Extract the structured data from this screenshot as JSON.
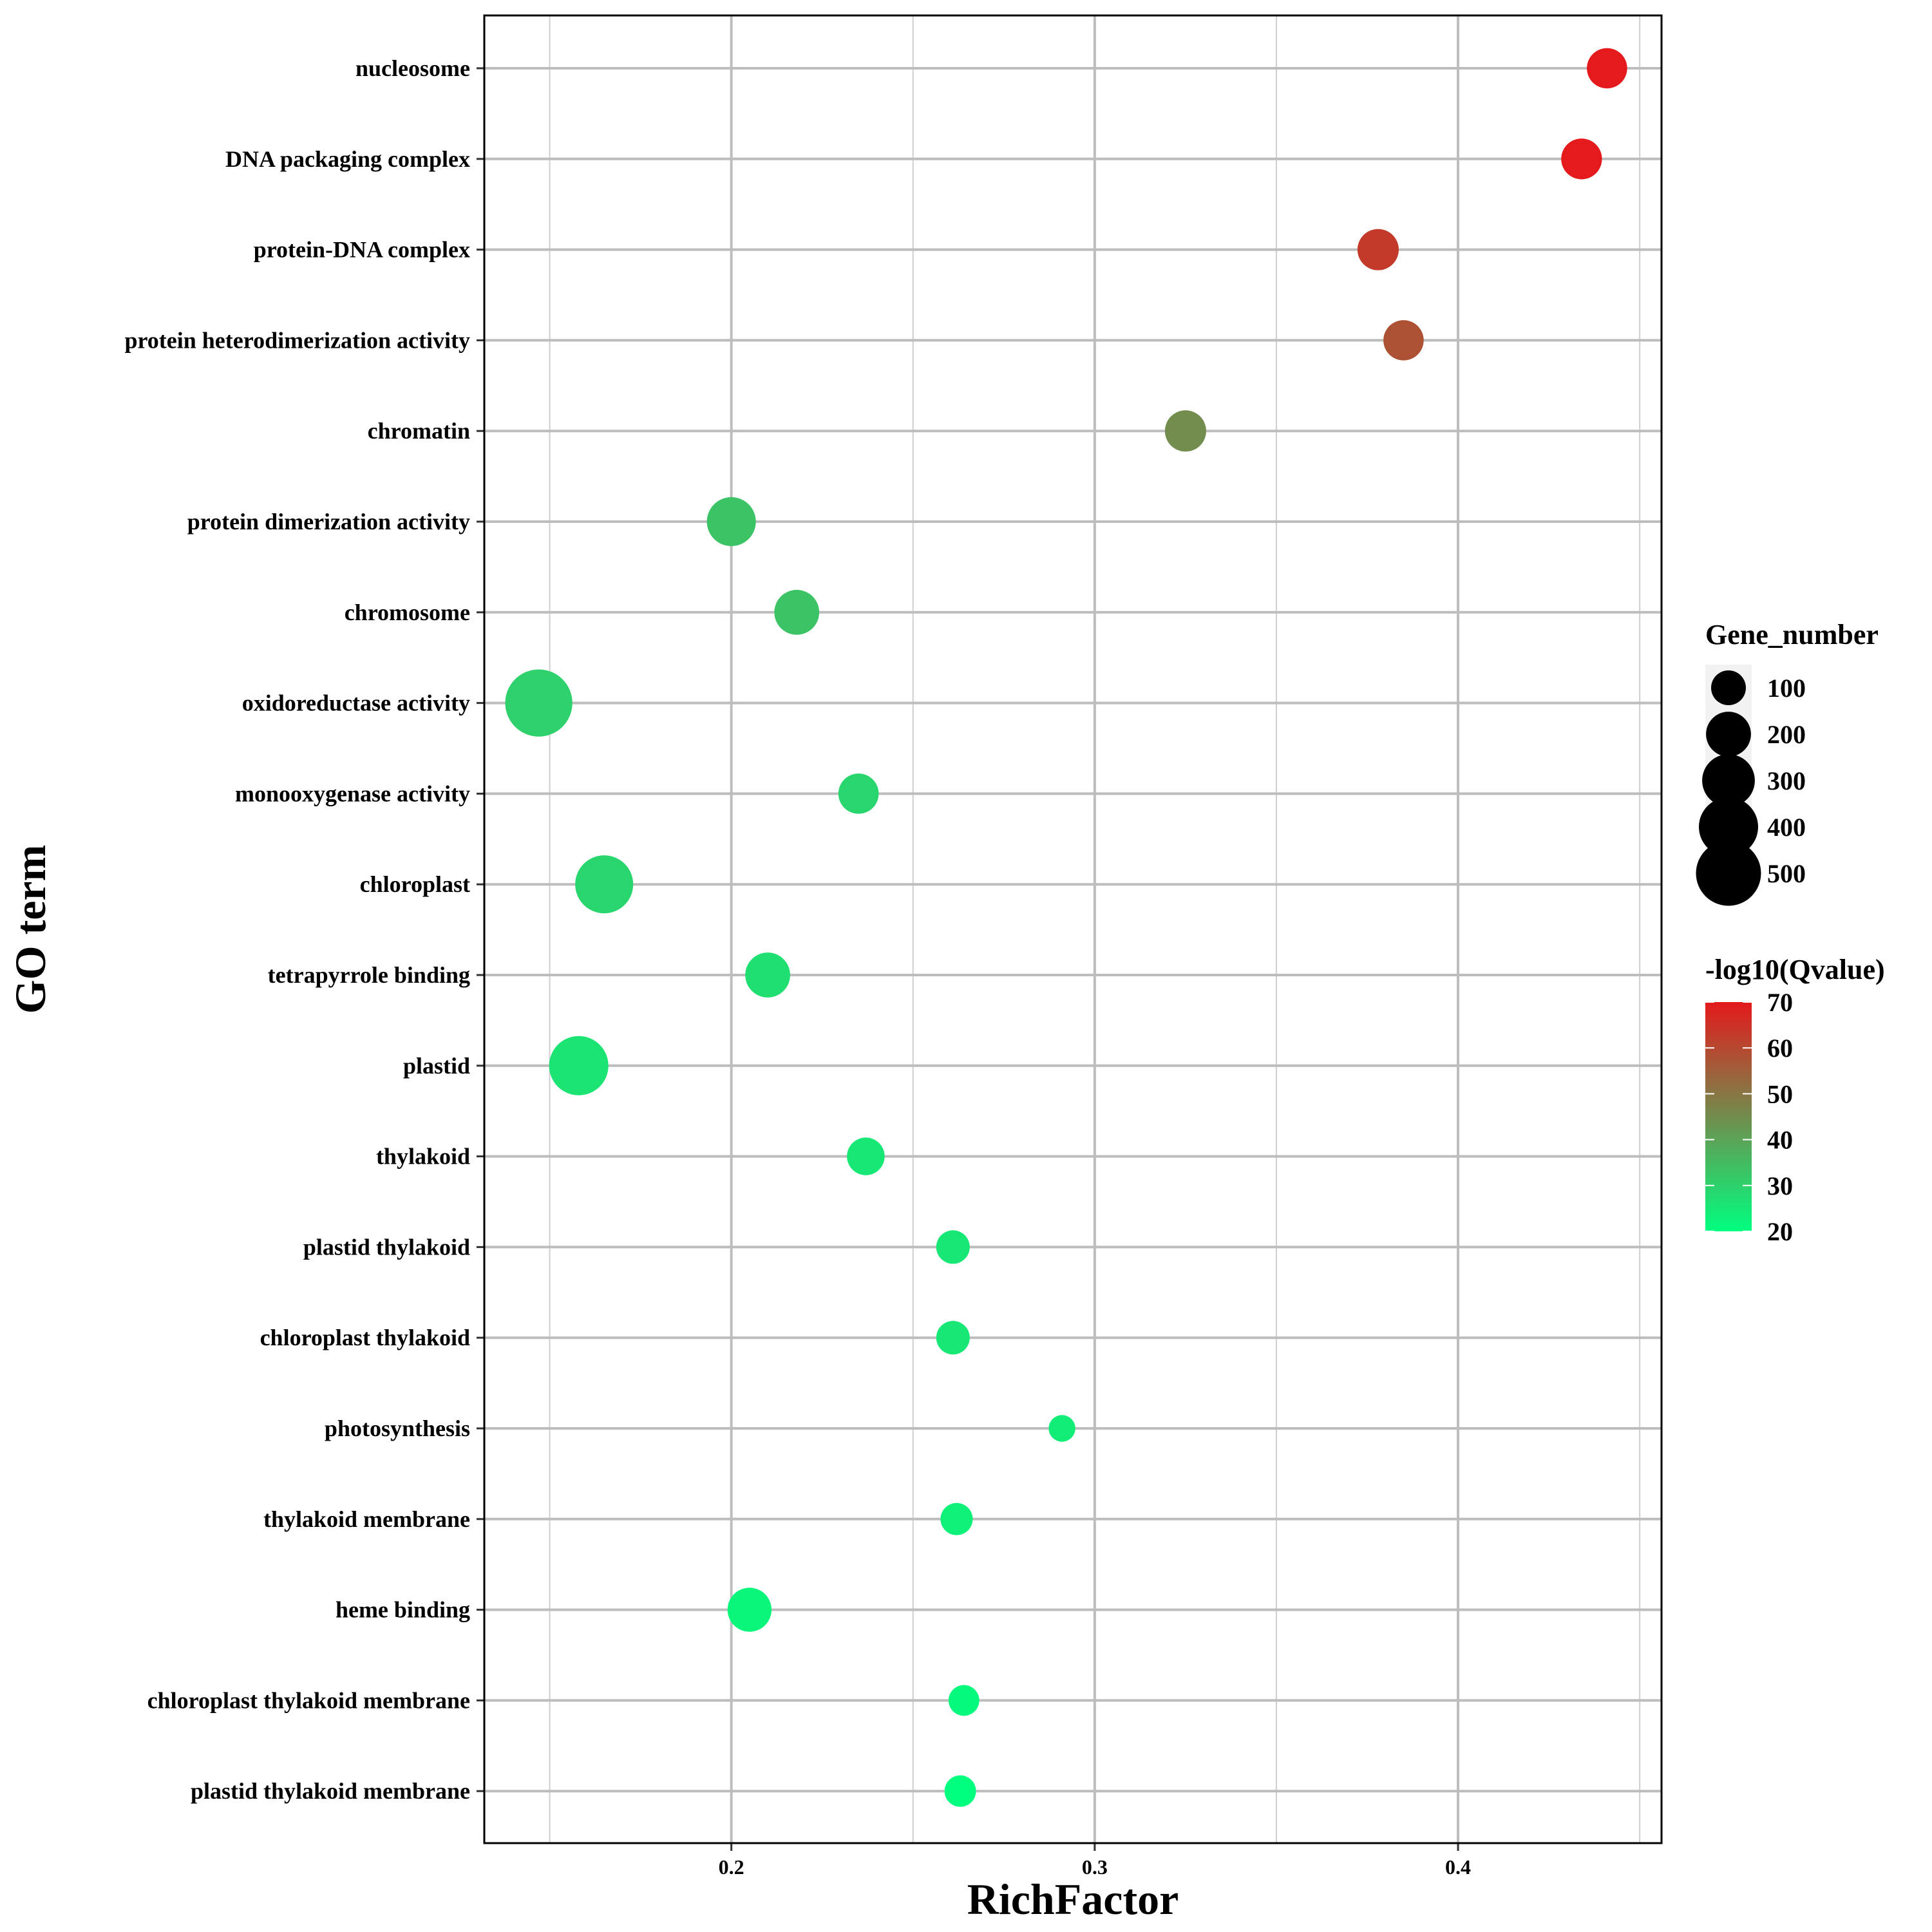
{
  "chart_data": {
    "type": "scatter",
    "xlabel": "RichFactor",
    "ylabel": "GO term",
    "xlim": [
      0.132,
      0.456
    ],
    "xticks": [
      0.2,
      0.3,
      0.4
    ],
    "xtick_labels": [
      "0.2",
      "0.3",
      "0.4"
    ],
    "x_minor_gridlines": [
      0.15,
      0.25,
      0.35,
      0.45
    ],
    "grid": true,
    "size_legend": {
      "title": "Gene_number",
      "values": [
        100,
        200,
        300,
        400,
        500
      ],
      "labels": [
        "100",
        "200",
        "300",
        "400",
        "500"
      ]
    },
    "color_legend": {
      "title": "-log10(Qvalue)",
      "range": [
        20,
        70
      ],
      "ticks": [
        20,
        30,
        40,
        50,
        60,
        70
      ],
      "tick_labels": [
        "20",
        "30",
        "40",
        "50",
        "60",
        "70"
      ],
      "low_color": "#00ff7f",
      "high_color": "#e41a1c"
    },
    "points": [
      {
        "term": "nucleosome",
        "rich_factor": 0.441,
        "gene_number": 150,
        "neg_log10_q": 71
      },
      {
        "term": "DNA packaging complex",
        "rich_factor": 0.434,
        "gene_number": 155,
        "neg_log10_q": 70
      },
      {
        "term": "protein-DNA complex",
        "rich_factor": 0.378,
        "gene_number": 160,
        "neg_log10_q": 63
      },
      {
        "term": "protein heterodimerization activity",
        "rich_factor": 0.385,
        "gene_number": 150,
        "neg_log10_q": 58
      },
      {
        "term": "chromatin",
        "rich_factor": 0.325,
        "gene_number": 160,
        "neg_log10_q": 45
      },
      {
        "term": "protein dimerization activity",
        "rich_factor": 0.2,
        "gene_number": 250,
        "neg_log10_q": 33
      },
      {
        "term": "chromosome",
        "rich_factor": 0.218,
        "gene_number": 200,
        "neg_log10_q": 33
      },
      {
        "term": "oxidoreductase activity",
        "rich_factor": 0.147,
        "gene_number": 540,
        "neg_log10_q": 30
      },
      {
        "term": "monooxygenase activity",
        "rich_factor": 0.235,
        "gene_number": 150,
        "neg_log10_q": 29
      },
      {
        "term": "chloroplast",
        "rich_factor": 0.165,
        "gene_number": 380,
        "neg_log10_q": 29
      },
      {
        "term": "tetrapyrrole binding",
        "rich_factor": 0.21,
        "gene_number": 200,
        "neg_log10_q": 27
      },
      {
        "term": "plastid",
        "rich_factor": 0.158,
        "gene_number": 400,
        "neg_log10_q": 26
      },
      {
        "term": "thylakoid",
        "rich_factor": 0.237,
        "gene_number": 125,
        "neg_log10_q": 25
      },
      {
        "term": "plastid thylakoid",
        "rich_factor": 0.261,
        "gene_number": 90,
        "neg_log10_q": 25
      },
      {
        "term": "chloroplast thylakoid",
        "rich_factor": 0.261,
        "gene_number": 90,
        "neg_log10_q": 25
      },
      {
        "term": "photosynthesis",
        "rich_factor": 0.291,
        "gene_number": 45,
        "neg_log10_q": 24
      },
      {
        "term": "thylakoid membrane",
        "rich_factor": 0.262,
        "gene_number": 80,
        "neg_log10_q": 23
      },
      {
        "term": "heme binding",
        "rich_factor": 0.205,
        "gene_number": 190,
        "neg_log10_q": 22
      },
      {
        "term": "chloroplast thylakoid membrane",
        "rich_factor": 0.264,
        "gene_number": 70,
        "neg_log10_q": 21
      },
      {
        "term": "plastid thylakoid membrane",
        "rich_factor": 0.263,
        "gene_number": 75,
        "neg_log10_q": 20
      }
    ]
  }
}
